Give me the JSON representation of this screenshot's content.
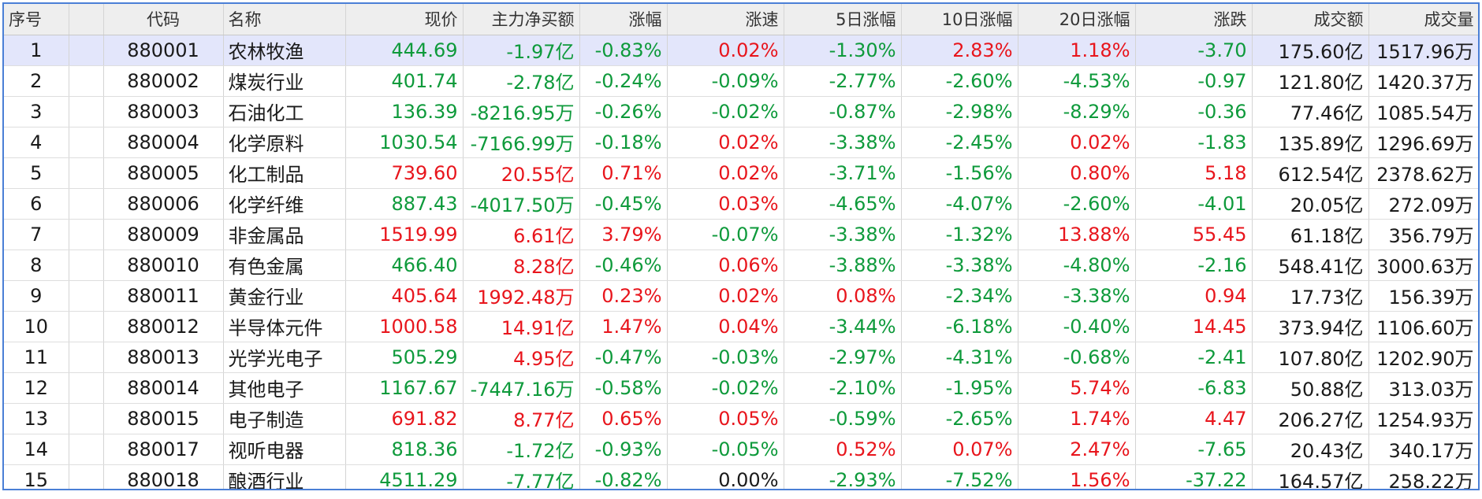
{
  "colors": {
    "up": "#e8151c",
    "down": "#0e9a3b",
    "flat": "#1a1a1a",
    "header_bg": "#eeeeee",
    "selected_row_bg": "#e3e6fb",
    "frame_border": "#4a7fd6"
  },
  "table": {
    "columns": [
      "序号",
      "",
      "代码",
      "名称",
      "现价",
      "主力净买额",
      "涨幅",
      "涨速",
      "5日涨幅",
      "10日涨幅",
      "20日涨幅",
      "涨跌",
      "成交额",
      "成交量"
    ],
    "selected_row": 0,
    "rows": [
      {
        "cells": [
          "1",
          "",
          "880001",
          "农林牧渔",
          "444.69",
          "-1.97亿",
          "-0.83%",
          "0.02%",
          "-1.30%",
          "2.83%",
          "1.18%",
          "-3.70",
          "175.60亿",
          "1517.96万"
        ],
        "tones": [
          "n",
          "n",
          "n",
          "n",
          "g",
          "g",
          "g",
          "r",
          "g",
          "r",
          "r",
          "g",
          "n",
          "n"
        ]
      },
      {
        "cells": [
          "2",
          "",
          "880002",
          "煤炭行业",
          "401.74",
          "-2.78亿",
          "-0.24%",
          "-0.09%",
          "-2.77%",
          "-2.60%",
          "-4.53%",
          "-0.97",
          "121.80亿",
          "1420.37万"
        ],
        "tones": [
          "n",
          "n",
          "n",
          "n",
          "g",
          "g",
          "g",
          "g",
          "g",
          "g",
          "g",
          "g",
          "n",
          "n"
        ]
      },
      {
        "cells": [
          "3",
          "",
          "880003",
          "石油化工",
          "136.39",
          "-8216.95万",
          "-0.26%",
          "-0.02%",
          "-0.87%",
          "-2.98%",
          "-8.29%",
          "-0.36",
          "77.46亿",
          "1085.54万"
        ],
        "tones": [
          "n",
          "n",
          "n",
          "n",
          "g",
          "g",
          "g",
          "g",
          "g",
          "g",
          "g",
          "g",
          "n",
          "n"
        ]
      },
      {
        "cells": [
          "4",
          "",
          "880004",
          "化学原料",
          "1030.54",
          "-7166.99万",
          "-0.18%",
          "0.02%",
          "-3.38%",
          "-2.45%",
          "0.02%",
          "-1.83",
          "135.89亿",
          "1296.69万"
        ],
        "tones": [
          "n",
          "n",
          "n",
          "n",
          "g",
          "g",
          "g",
          "r",
          "g",
          "g",
          "r",
          "g",
          "n",
          "n"
        ]
      },
      {
        "cells": [
          "5",
          "",
          "880005",
          "化工制品",
          "739.60",
          "20.55亿",
          "0.71%",
          "0.02%",
          "-3.71%",
          "-1.56%",
          "0.80%",
          "5.18",
          "612.54亿",
          "2378.62万"
        ],
        "tones": [
          "n",
          "n",
          "n",
          "n",
          "r",
          "r",
          "r",
          "r",
          "g",
          "g",
          "r",
          "r",
          "n",
          "n"
        ]
      },
      {
        "cells": [
          "6",
          "",
          "880006",
          "化学纤维",
          "887.43",
          "-4017.50万",
          "-0.45%",
          "0.03%",
          "-4.65%",
          "-4.07%",
          "-2.60%",
          "-4.01",
          "20.05亿",
          "272.09万"
        ],
        "tones": [
          "n",
          "n",
          "n",
          "n",
          "g",
          "g",
          "g",
          "r",
          "g",
          "g",
          "g",
          "g",
          "n",
          "n"
        ]
      },
      {
        "cells": [
          "7",
          "",
          "880009",
          "非金属品",
          "1519.99",
          "6.61亿",
          "3.79%",
          "-0.07%",
          "-3.38%",
          "-1.32%",
          "13.88%",
          "55.45",
          "61.18亿",
          "356.79万"
        ],
        "tones": [
          "n",
          "n",
          "n",
          "n",
          "r",
          "r",
          "r",
          "g",
          "g",
          "g",
          "r",
          "r",
          "n",
          "n"
        ]
      },
      {
        "cells": [
          "8",
          "",
          "880010",
          "有色金属",
          "466.40",
          "8.28亿",
          "-0.46%",
          "0.06%",
          "-3.88%",
          "-3.38%",
          "-4.80%",
          "-2.16",
          "548.41亿",
          "3000.63万"
        ],
        "tones": [
          "n",
          "n",
          "n",
          "n",
          "g",
          "r",
          "g",
          "r",
          "g",
          "g",
          "g",
          "g",
          "n",
          "n"
        ]
      },
      {
        "cells": [
          "9",
          "",
          "880011",
          "黄金行业",
          "405.64",
          "1992.48万",
          "0.23%",
          "0.02%",
          "0.08%",
          "-2.34%",
          "-3.38%",
          "0.94",
          "17.73亿",
          "156.39万"
        ],
        "tones": [
          "n",
          "n",
          "n",
          "n",
          "r",
          "r",
          "r",
          "r",
          "r",
          "g",
          "g",
          "r",
          "n",
          "n"
        ]
      },
      {
        "cells": [
          "10",
          "",
          "880012",
          "半导体元件",
          "1000.58",
          "14.91亿",
          "1.47%",
          "0.04%",
          "-3.44%",
          "-6.18%",
          "-0.40%",
          "14.45",
          "373.94亿",
          "1106.60万"
        ],
        "tones": [
          "n",
          "n",
          "n",
          "n",
          "r",
          "r",
          "r",
          "r",
          "g",
          "g",
          "g",
          "r",
          "n",
          "n"
        ]
      },
      {
        "cells": [
          "11",
          "",
          "880013",
          "光学光电子",
          "505.29",
          "4.95亿",
          "-0.47%",
          "-0.03%",
          "-2.97%",
          "-4.31%",
          "-0.68%",
          "-2.41",
          "107.80亿",
          "1202.90万"
        ],
        "tones": [
          "n",
          "n",
          "n",
          "n",
          "g",
          "r",
          "g",
          "g",
          "g",
          "g",
          "g",
          "g",
          "n",
          "n"
        ]
      },
      {
        "cells": [
          "12",
          "",
          "880014",
          "其他电子",
          "1167.67",
          "-7447.16万",
          "-0.58%",
          "-0.02%",
          "-2.10%",
          "-1.95%",
          "5.74%",
          "-6.83",
          "50.88亿",
          "313.03万"
        ],
        "tones": [
          "n",
          "n",
          "n",
          "n",
          "g",
          "g",
          "g",
          "g",
          "g",
          "g",
          "r",
          "g",
          "n",
          "n"
        ]
      },
      {
        "cells": [
          "13",
          "",
          "880015",
          "电子制造",
          "691.82",
          "8.77亿",
          "0.65%",
          "0.05%",
          "-0.59%",
          "-2.65%",
          "1.74%",
          "4.47",
          "206.27亿",
          "1254.93万"
        ],
        "tones": [
          "n",
          "n",
          "n",
          "n",
          "r",
          "r",
          "r",
          "r",
          "g",
          "g",
          "r",
          "r",
          "n",
          "n"
        ]
      },
      {
        "cells": [
          "14",
          "",
          "880017",
          "视听电器",
          "818.36",
          "-1.72亿",
          "-0.93%",
          "-0.05%",
          "0.52%",
          "0.07%",
          "2.47%",
          "-7.65",
          "20.43亿",
          "340.17万"
        ],
        "tones": [
          "n",
          "n",
          "n",
          "n",
          "g",
          "g",
          "g",
          "g",
          "r",
          "r",
          "r",
          "g",
          "n",
          "n"
        ]
      },
      {
        "cells": [
          "15",
          "",
          "880018",
          "酿酒行业",
          "4511.29",
          "-7.77亿",
          "-0.82%",
          "0.00%",
          "-2.93%",
          "-7.52%",
          "1.56%",
          "-37.22",
          "164.57亿",
          "258.22万"
        ],
        "tones": [
          "n",
          "n",
          "n",
          "n",
          "g",
          "g",
          "g",
          "n",
          "g",
          "g",
          "r",
          "g",
          "n",
          "n"
        ]
      }
    ]
  }
}
